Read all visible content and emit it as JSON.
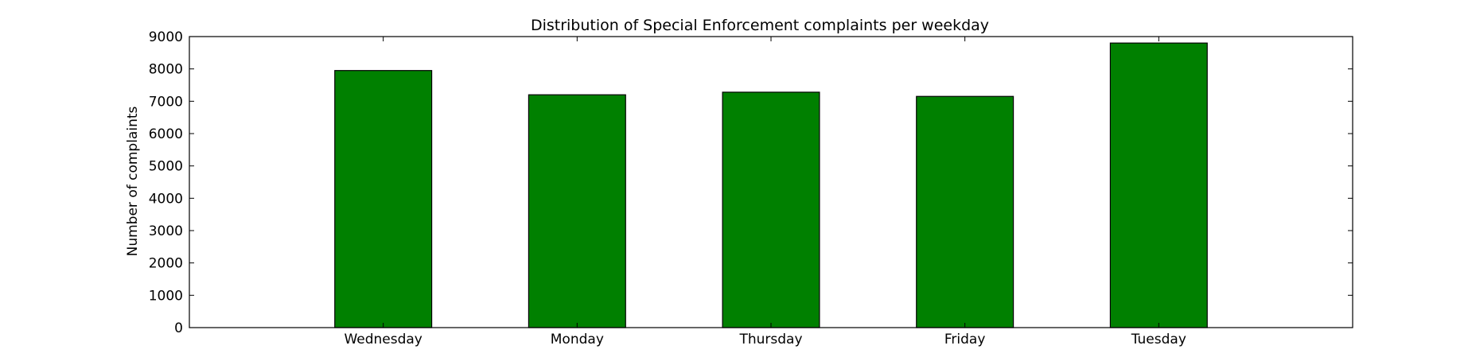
{
  "chart_data": {
    "type": "bar",
    "title": "Distribution of  Special Enforcement complaints per weekday",
    "xlabel": "",
    "ylabel": "Number of complaints",
    "categories": [
      "Wednesday",
      "Monday",
      "Thursday",
      "Friday",
      "Tuesday"
    ],
    "values": [
      7950,
      7200,
      7280,
      7150,
      8800
    ],
    "ylim": [
      0,
      9000
    ],
    "xlim": [
      -1,
      5
    ],
    "yticks": [
      0,
      1000,
      2000,
      3000,
      4000,
      5000,
      6000,
      7000,
      8000,
      9000
    ],
    "bar_color": "#008000",
    "edge_color": "#000000",
    "grid": false,
    "legend": "none"
  }
}
